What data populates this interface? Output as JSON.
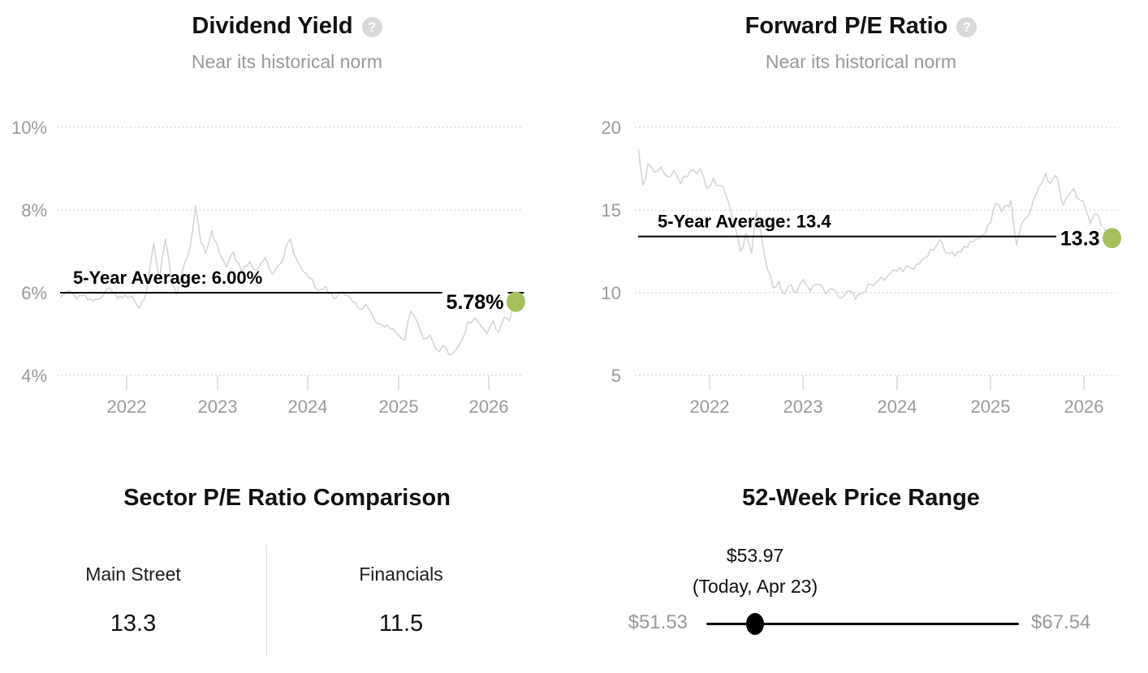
{
  "icons": {
    "help_glyph": "?"
  },
  "colors": {
    "title": "#111111",
    "subtitle": "#999999",
    "axis_label": "#9a9a9a",
    "grid": "#d6d6d6",
    "tick": "#d8d8d8",
    "series_line": "#d3d3d3",
    "average_line": "#000000",
    "current_dot": "#a6c05e",
    "help_icon_bg": "#d9d9d9",
    "range_endpoints": "#999999",
    "range_line": "#000000",
    "range_dot": "#000000",
    "divider": "#dddddd"
  },
  "chart_data": [
    {
      "id": "dividend_yield",
      "type": "line",
      "title": "Dividend Yield",
      "subtitle": "Near its historical norm",
      "help_icon": "question-mark-icon",
      "grid": "dotted-horizontal",
      "ylim": [
        4,
        10
      ],
      "xlim": [
        2021.27,
        2026.37
      ],
      "y_ticks": [
        {
          "value": 10,
          "label": "10%"
        },
        {
          "value": 8,
          "label": "8%"
        },
        {
          "value": 6,
          "label": "6%"
        },
        {
          "value": 4,
          "label": "4%"
        }
      ],
      "x_ticks": [
        {
          "value": 2022,
          "label": "2022"
        },
        {
          "value": 2023,
          "label": "2023"
        },
        {
          "value": 2024,
          "label": "2024"
        },
        {
          "value": 2025,
          "label": "2025"
        },
        {
          "value": 2026,
          "label": "2026"
        }
      ],
      "average": {
        "label": "5-Year Average: 6.00%",
        "value": 6.0
      },
      "current": {
        "label": "5.78%",
        "value": 5.78,
        "x": 2026.3
      },
      "series": [
        {
          "name": "dividend_yield_history",
          "points": [
            [
              2021.27,
              5.9
            ],
            [
              2021.36,
              6.05
            ],
            [
              2021.45,
              5.85
            ],
            [
              2021.54,
              5.95
            ],
            [
              2021.63,
              5.8
            ],
            [
              2021.72,
              5.88
            ],
            [
              2021.81,
              6.12
            ],
            [
              2021.9,
              5.86
            ],
            [
              2021.98,
              5.95
            ],
            [
              2022.06,
              5.92
            ],
            [
              2022.14,
              5.62
            ],
            [
              2022.22,
              6.05
            ],
            [
              2022.3,
              7.2
            ],
            [
              2022.36,
              6.3
            ],
            [
              2022.43,
              7.3
            ],
            [
              2022.5,
              6.2
            ],
            [
              2022.55,
              5.95
            ],
            [
              2022.62,
              6.55
            ],
            [
              2022.7,
              7.1
            ],
            [
              2022.76,
              8.1
            ],
            [
              2022.82,
              7.2
            ],
            [
              2022.87,
              6.95
            ],
            [
              2022.94,
              7.5
            ],
            [
              2023.02,
              7.0
            ],
            [
              2023.1,
              6.62
            ],
            [
              2023.18,
              6.98
            ],
            [
              2023.27,
              6.5
            ],
            [
              2023.36,
              6.75
            ],
            [
              2023.45,
              6.55
            ],
            [
              2023.53,
              6.85
            ],
            [
              2023.61,
              6.45
            ],
            [
              2023.7,
              6.7
            ],
            [
              2023.76,
              7.1
            ],
            [
              2023.81,
              7.3
            ],
            [
              2023.88,
              6.8
            ],
            [
              2023.95,
              6.52
            ],
            [
              2024.02,
              6.35
            ],
            [
              2024.11,
              6.05
            ],
            [
              2024.2,
              6.15
            ],
            [
              2024.29,
              5.85
            ],
            [
              2024.38,
              6.02
            ],
            [
              2024.47,
              5.88
            ],
            [
              2024.56,
              5.62
            ],
            [
              2024.64,
              5.72
            ],
            [
              2024.73,
              5.38
            ],
            [
              2024.82,
              5.22
            ],
            [
              2024.91,
              5.12
            ],
            [
              2025.0,
              4.98
            ],
            [
              2025.07,
              4.85
            ],
            [
              2025.14,
              5.55
            ],
            [
              2025.21,
              5.3
            ],
            [
              2025.28,
              4.88
            ],
            [
              2025.35,
              4.98
            ],
            [
              2025.42,
              4.62
            ],
            [
              2025.49,
              4.72
            ],
            [
              2025.56,
              4.5
            ],
            [
              2025.63,
              4.6
            ],
            [
              2025.7,
              4.85
            ],
            [
              2025.77,
              5.3
            ],
            [
              2025.84,
              5.38
            ],
            [
              2025.91,
              5.2
            ],
            [
              2025.98,
              5.02
            ],
            [
              2026.05,
              5.32
            ],
            [
              2026.11,
              5.05
            ],
            [
              2026.17,
              5.4
            ],
            [
              2026.23,
              5.32
            ],
            [
              2026.3,
              5.78
            ]
          ]
        }
      ]
    },
    {
      "id": "forward_pe",
      "type": "line",
      "title": "Forward P/E Ratio",
      "subtitle": "Near its historical norm",
      "help_icon": "question-mark-icon",
      "grid": "dotted-horizontal",
      "ylim": [
        5,
        20
      ],
      "xlim": [
        2021.24,
        2026.37
      ],
      "y_ticks": [
        {
          "value": 20,
          "label": "20"
        },
        {
          "value": 15,
          "label": "15"
        },
        {
          "value": 10,
          "label": "10"
        },
        {
          "value": 5,
          "label": "5"
        }
      ],
      "x_ticks": [
        {
          "value": 2022,
          "label": "2022"
        },
        {
          "value": 2023,
          "label": "2023"
        },
        {
          "value": 2024,
          "label": "2024"
        },
        {
          "value": 2025,
          "label": "2025"
        },
        {
          "value": 2026,
          "label": "2026"
        }
      ],
      "average": {
        "label": "5-Year Average: 13.4",
        "value": 13.4
      },
      "current": {
        "label": "13.3",
        "value": 13.3,
        "x": 2026.3
      },
      "series": [
        {
          "name": "forward_pe_history",
          "points": [
            [
              2021.24,
              18.7
            ],
            [
              2021.29,
              16.5
            ],
            [
              2021.34,
              17.8
            ],
            [
              2021.41,
              17.3
            ],
            [
              2021.48,
              17.6
            ],
            [
              2021.55,
              17.0
            ],
            [
              2021.62,
              17.4
            ],
            [
              2021.69,
              16.6
            ],
            [
              2021.76,
              17.0
            ],
            [
              2021.83,
              17.4
            ],
            [
              2021.9,
              17.5
            ],
            [
              2021.97,
              16.3
            ],
            [
              2022.04,
              16.9
            ],
            [
              2022.11,
              16.5
            ],
            [
              2022.18,
              15.8
            ],
            [
              2022.26,
              14.2
            ],
            [
              2022.33,
              12.5
            ],
            [
              2022.39,
              13.6
            ],
            [
              2022.45,
              12.4
            ],
            [
              2022.5,
              14.9
            ],
            [
              2022.56,
              13.2
            ],
            [
              2022.62,
              11.4
            ],
            [
              2022.68,
              10.3
            ],
            [
              2022.74,
              10.7
            ],
            [
              2022.8,
              9.9
            ],
            [
              2022.87,
              10.5
            ],
            [
              2022.93,
              10.0
            ],
            [
              2023.0,
              10.8
            ],
            [
              2023.08,
              10.1
            ],
            [
              2023.16,
              10.5
            ],
            [
              2023.24,
              9.9
            ],
            [
              2023.32,
              10.2
            ],
            [
              2023.4,
              9.7
            ],
            [
              2023.48,
              10.1
            ],
            [
              2023.56,
              9.6
            ],
            [
              2023.64,
              10.0
            ],
            [
              2023.72,
              10.5
            ],
            [
              2023.8,
              10.7
            ],
            [
              2023.9,
              11.0
            ],
            [
              2024.0,
              11.3
            ],
            [
              2024.1,
              11.6
            ],
            [
              2024.18,
              11.4
            ],
            [
              2024.27,
              12.0
            ],
            [
              2024.36,
              12.6
            ],
            [
              2024.46,
              13.2
            ],
            [
              2024.54,
              12.4
            ],
            [
              2024.62,
              12.2
            ],
            [
              2024.72,
              12.8
            ],
            [
              2024.82,
              13.1
            ],
            [
              2024.92,
              13.5
            ],
            [
              2025.0,
              14.2
            ],
            [
              2025.06,
              15.4
            ],
            [
              2025.12,
              14.9
            ],
            [
              2025.18,
              15.3
            ],
            [
              2025.22,
              15.6
            ],
            [
              2025.28,
              12.9
            ],
            [
              2025.34,
              14.2
            ],
            [
              2025.4,
              14.6
            ],
            [
              2025.46,
              15.6
            ],
            [
              2025.52,
              16.4
            ],
            [
              2025.59,
              17.2
            ],
            [
              2025.64,
              16.6
            ],
            [
              2025.7,
              17.1
            ],
            [
              2025.78,
              15.3
            ],
            [
              2025.84,
              15.9
            ],
            [
              2025.89,
              16.3
            ],
            [
              2025.96,
              15.6
            ],
            [
              2026.02,
              15.0
            ],
            [
              2026.07,
              14.2
            ],
            [
              2026.13,
              14.8
            ],
            [
              2026.19,
              13.9
            ],
            [
              2026.24,
              13.6
            ],
            [
              2026.3,
              13.3
            ]
          ]
        }
      ]
    }
  ],
  "sector_comparison": {
    "title": "Sector P/E Ratio Comparison",
    "items": [
      {
        "label": "Main Street",
        "value": "13.3"
      },
      {
        "label": "Financials",
        "value": "11.5"
      }
    ]
  },
  "price_range": {
    "title": "52-Week Price Range",
    "current_price": "$53.97",
    "current_note": "(Today, Apr 23)",
    "low": "$51.53",
    "high": "$67.54",
    "position_fraction": 0.156
  }
}
